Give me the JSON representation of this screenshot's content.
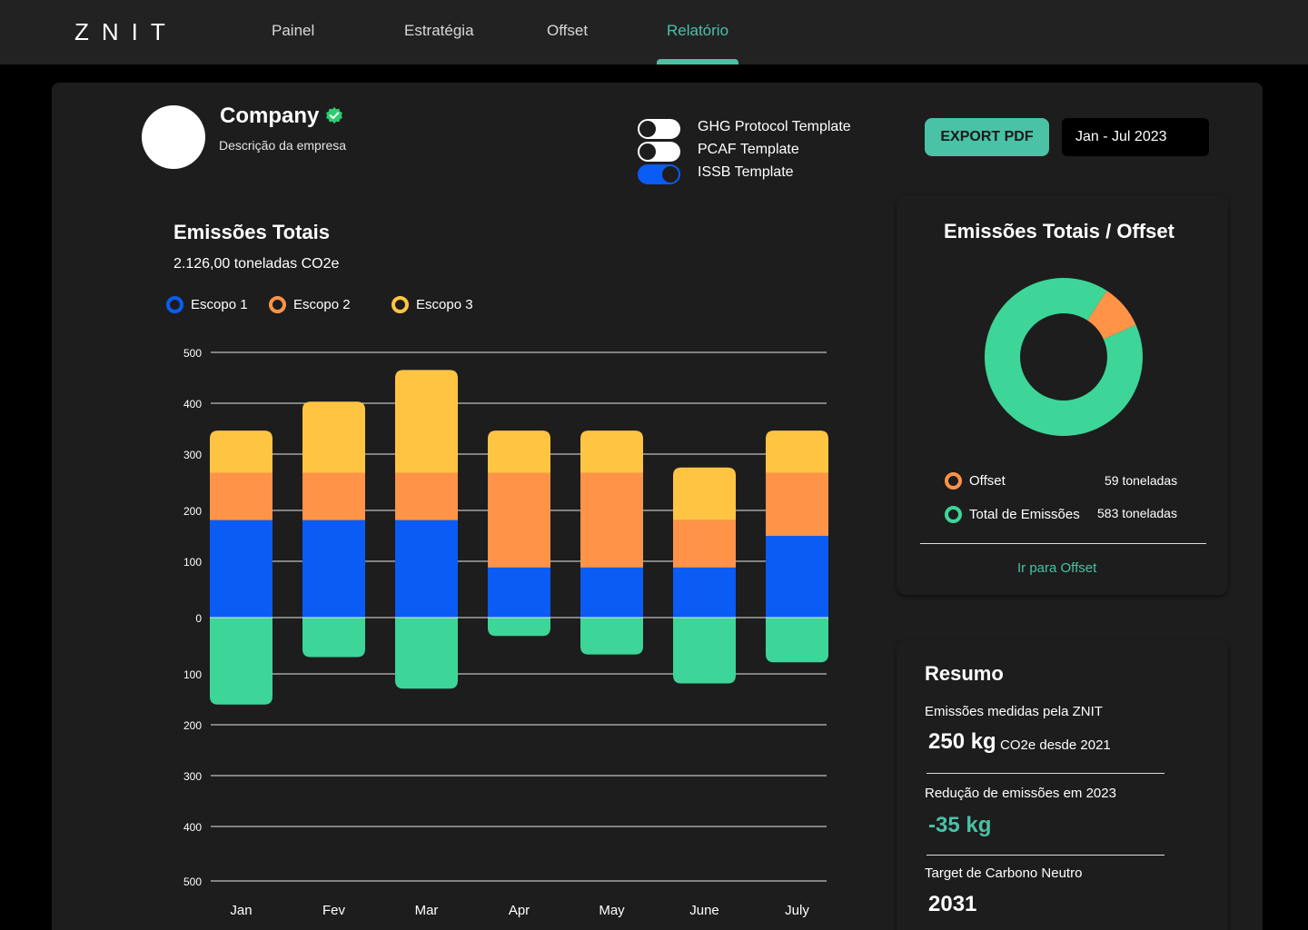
{
  "app": {
    "logo": "ZNIT",
    "nav": [
      {
        "label": "Painel"
      },
      {
        "label": "Estratégia"
      },
      {
        "label": "Offset"
      },
      {
        "label": "Relatório"
      }
    ],
    "active_nav": "Relatório",
    "accent_color": "#49c2a6"
  },
  "company": {
    "name": "Company",
    "description": "Descrição da empresa",
    "verified_icon": "check-circle-icon"
  },
  "templates": [
    {
      "label": "GHG Protocol Template",
      "on": false
    },
    {
      "label": "PCAF Template",
      "on": false
    },
    {
      "label": "ISSB Template",
      "on": true
    }
  ],
  "actions": {
    "export_label": "EXPORT PDF",
    "date_range": "Jan - Jul 2023"
  },
  "emissions": {
    "title": "Emissões Totais",
    "total": "2.126,00 toneladas CO2e",
    "legend": [
      {
        "label": "Escopo 1",
        "color": "#0a5cf5"
      },
      {
        "label": "Escopo 2",
        "color": "#ff9347"
      },
      {
        "label": "Escopo 3",
        "color": "#ffc542"
      }
    ]
  },
  "chart_data": [
    {
      "type": "bar",
      "stacked": true,
      "categories": [
        "Jan",
        "Fev",
        "Mar",
        "Apr",
        "May",
        "June",
        "July"
      ],
      "y_ticks": [
        "500",
        "400",
        "300",
        "200",
        "100",
        "0",
        "100",
        "200",
        "300",
        "400",
        "500"
      ],
      "series": [
        {
          "name": "Escopo 1",
          "color": "#0a5cf5",
          "values": [
            185,
            185,
            185,
            95,
            95,
            95,
            155
          ]
        },
        {
          "name": "Escopo 2",
          "color": "#ff9347",
          "values": [
            90,
            90,
            90,
            180,
            180,
            90,
            120
          ]
        },
        {
          "name": "Escopo 3",
          "color": "#ffc542",
          "values": [
            80,
            135,
            195,
            80,
            80,
            100,
            80
          ]
        },
        {
          "color": "#3dd598",
          "values": [
            -165,
            -75,
            -135,
            -35,
            -70,
            -125,
            -85
          ]
        }
      ],
      "grid": true
    },
    {
      "type": "pie",
      "title": "Emissões Totais / Offset",
      "donut": true,
      "series": [
        {
          "name": "Offset",
          "value": 59,
          "color": "#ff9347"
        },
        {
          "name": "Total de Emissões",
          "value": 583,
          "color": "#3dd598"
        }
      ]
    }
  ],
  "offset_card": {
    "title": "Emissões Totais / Offset",
    "items": [
      {
        "label": "Offset",
        "value": "59 toneladas",
        "color": "#ff9347"
      },
      {
        "label": "Total de Emissões",
        "value": "583 toneladas",
        "color": "#3dd598"
      }
    ],
    "link": "Ir para Offset"
  },
  "summary": {
    "title": "Resumo",
    "measured_label": "Emissões medidas pela ZNIT",
    "measured_value": "250 kg",
    "measured_unit": "CO2e desde 2021",
    "reduction_label": "Redução de emissões em 2023",
    "reduction_value": "-35 kg",
    "target_label": "Target de Carbono Neutro",
    "target_value": "2031"
  }
}
